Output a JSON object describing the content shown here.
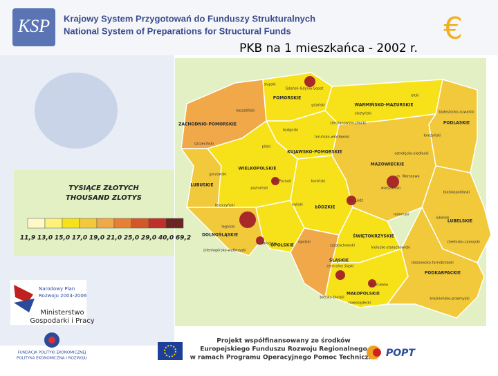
{
  "header": {
    "logo": "KSP",
    "line1": "Krajowy System Przygotowań do Funduszy Strukturalnych",
    "line2": "National System of Preparations for Structural Funds",
    "euro": "€"
  },
  "title": "PKB na 1 mieszkańca - 2002 r.",
  "legend": {
    "title1": "TYSIĄCE ZŁOTYCH",
    "title2": "THOUSAND ZLOTYS",
    "colors": [
      "#fff9c8",
      "#fff27a",
      "#f7e21a",
      "#f2c93a",
      "#f0a848",
      "#e88034",
      "#d4572a",
      "#c0302a",
      "#6b2424"
    ],
    "ticks": [
      "11,9",
      "13,0",
      "15,0",
      "17,0",
      "19,0",
      "21,0",
      "25,0",
      "29,0",
      "40,0",
      "69,2"
    ]
  },
  "map": {
    "regions": [
      {
        "name": "ZACHODNIO-POMORSKIE",
        "color": "#f0a848"
      },
      {
        "name": "POMORSKIE",
        "color": "#f7e21a"
      },
      {
        "name": "WARMIŃSKO-MAZURSKIE",
        "color": "#f7e21a"
      },
      {
        "name": "PODLASKIE",
        "color": "#f2c93a"
      },
      {
        "name": "KUJAWSKO-POMORSKIE",
        "color": "#f7e21a"
      },
      {
        "name": "LUBUSKIE",
        "color": "#f2c93a"
      },
      {
        "name": "WIELKOPOLSKIE",
        "color": "#f7e21a"
      },
      {
        "name": "MAZOWIECKIE",
        "color": "#f2c93a"
      },
      {
        "name": "ŁÓDZKIE",
        "color": "#f7e21a"
      },
      {
        "name": "LUBELSKIE",
        "color": "#f2c93a"
      },
      {
        "name": "DOLNOŚLĄSKIE",
        "color": "#f2c93a"
      },
      {
        "name": "OPOLSKIE",
        "color": "#f7e21a"
      },
      {
        "name": "ŚLĄSKIE",
        "color": "#f0a848"
      },
      {
        "name": "ŚWIĘTOKRZYSKIE",
        "color": "#f7e21a"
      },
      {
        "name": "MAŁOPOLSKIE",
        "color": "#f7e21a"
      },
      {
        "name": "PODKARPACKIE",
        "color": "#f2c93a"
      }
    ],
    "labels": [
      "słupski",
      "Gdańsk-Gdynia-Sopot",
      "gdański",
      "koszaliński",
      "szczeciński",
      "olsztyński",
      "ełcki",
      "białostocko-suwalski",
      "łomżyński",
      "bydgoski",
      "toruńsko-włocławski",
      "pilski",
      "ciechanowsko-płocki",
      "ostrołęcko-siedlecki",
      "gorzowski",
      "poznański",
      "m. Poznań",
      "koniński",
      "m. Warszawa",
      "warszawski",
      "kaliski",
      "m. Łódź",
      "bialskopodlaski",
      "lubelski",
      "leszczyński",
      "legnicki",
      "radomski",
      "jeleniogórsko-wałbrzyski",
      "m. Wrocław",
      "opolski",
      "częstochowski",
      "kielecko-starachowicki",
      "centralny śląski",
      "bielsko-bialski",
      "m. Kraków",
      "nowosądecki",
      "rzeszowsko-tarnobrzeski",
      "krośnieńsko-przemyski",
      "chełmsko-zamojski"
    ]
  },
  "sidebar": {
    "npr1": "Narodowy Plan",
    "npr2": "Rozwoju 2004-2006",
    "ministry1": "Ministerstwo",
    "ministry2": "Gospodarki i Pracy",
    "foundation1": "FUNDACJA POLITYKI EKONOMICZNEJ",
    "foundation2": "POLITYKA EKONOMICZNA I ROZWOJU"
  },
  "footer": {
    "line1": "Projekt współfinansowany ze środków",
    "line2": "Europejskiego Funduszu Rozwoju Regionalnego",
    "line3": "w ramach Programu Operacyjnego Pomoc Techniczna",
    "popt": "POPT"
  }
}
